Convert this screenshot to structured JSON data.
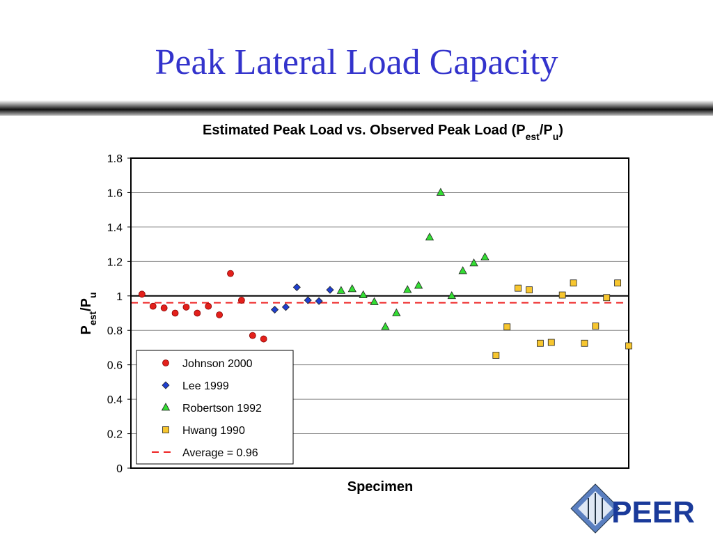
{
  "slide_title": "Peak Lateral Load Capacity",
  "logo_text": "PEER",
  "chart_data": {
    "type": "scatter",
    "title_parts": [
      "Estimated Peak Load vs. Observed Peak Load (P",
      "est",
      "/P",
      "u",
      ")"
    ],
    "y_label_parts": [
      "P",
      "est",
      "/P",
      "u"
    ],
    "x_label": "Specimen",
    "xlim": [
      0,
      45
    ],
    "ylim": [
      0,
      1.8
    ],
    "yticks": [
      0,
      0.2,
      0.4,
      0.6,
      0.8,
      1,
      1.2,
      1.4,
      1.6,
      1.8
    ],
    "grid": true,
    "legend": "lower left",
    "series": [
      {
        "name": "Johnson 2000",
        "marker": "circle",
        "color": "#e3201b",
        "x": [
          1,
          2,
          3,
          4,
          5,
          6,
          7,
          8,
          9,
          10,
          11,
          12
        ],
        "values": [
          1.01,
          0.94,
          0.93,
          0.9,
          0.935,
          0.9,
          0.94,
          0.89,
          1.13,
          0.975,
          0.77,
          0.75
        ]
      },
      {
        "name": "Lee 1999",
        "marker": "diamond",
        "color": "#1f3fd0",
        "x": [
          13,
          14,
          15,
          16,
          17,
          18
        ],
        "values": [
          0.92,
          0.935,
          1.05,
          0.975,
          0.97,
          1.035
        ]
      },
      {
        "name": "Robertson 1992",
        "marker": "triangle",
        "color": "#33dd33",
        "x": [
          19,
          20,
          21,
          22,
          23,
          24,
          25,
          26,
          27,
          28,
          29,
          30,
          31,
          32
        ],
        "values": [
          1.03,
          1.04,
          1.005,
          0.965,
          0.82,
          0.9,
          1.035,
          1.06,
          1.34,
          1.6,
          1.0,
          1.145,
          1.19,
          1.225
        ]
      },
      {
        "name": "Hwang 1990",
        "marker": "square",
        "color": "#f7c62f",
        "x": [
          33,
          34,
          35,
          36,
          37,
          38,
          39,
          40,
          41,
          42,
          43,
          44,
          45
        ],
        "values": [
          0.655,
          0.82,
          1.045,
          1.035,
          0.725,
          0.73,
          1.005,
          1.075,
          0.725,
          0.825,
          0.99,
          1.075,
          0.71
        ]
      }
    ],
    "average_line": {
      "name": "Average = 0.96",
      "value": 0.96,
      "color": "#ee2222"
    },
    "unity_line": {
      "value": 1,
      "color": "#000000"
    }
  }
}
